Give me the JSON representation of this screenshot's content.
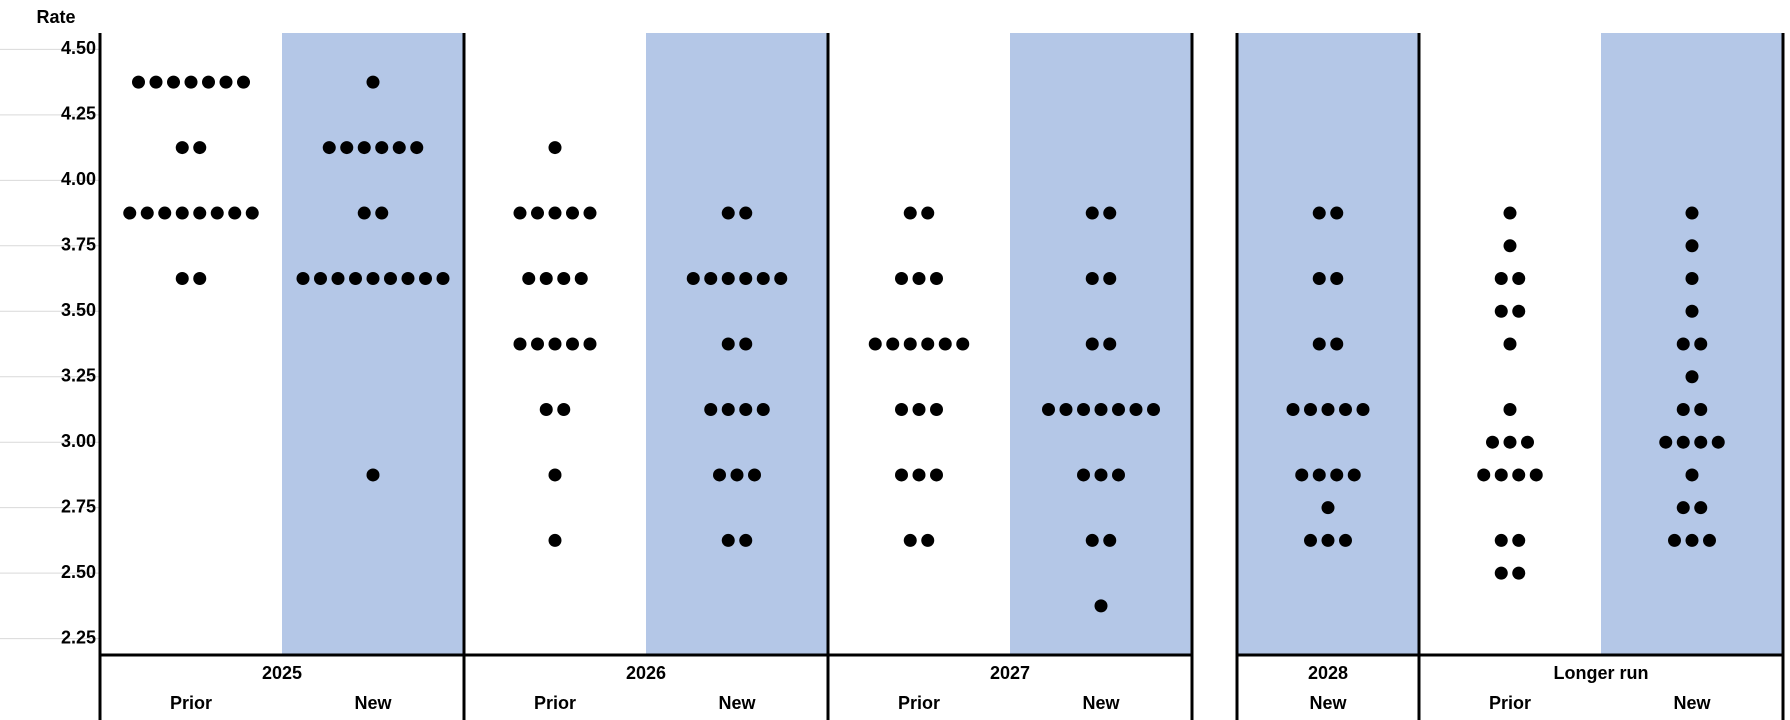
{
  "chart_data": {
    "type": "dot",
    "y_label": "Rate",
    "dot_color": "#000000",
    "ylim": [
      2.1875,
      4.5625
    ],
    "yticks": [
      {
        "value": 2.25,
        "label": "2.25"
      },
      {
        "value": 2.5,
        "label": "2.50"
      },
      {
        "value": 2.75,
        "label": "2.75"
      },
      {
        "value": 3,
        "label": "3.00"
      },
      {
        "value": 3.25,
        "label": "3.25"
      },
      {
        "value": 3.5,
        "label": "3.50"
      },
      {
        "value": 3.75,
        "label": "3.75"
      },
      {
        "value": 4,
        "label": "4.00"
      },
      {
        "value": 4.25,
        "label": "4.25"
      },
      {
        "value": 4.5,
        "label": "4.50"
      }
    ],
    "groups": [
      {
        "name": "2025",
        "columns": [
          {
            "name": "Prior",
            "background": "#ffffff",
            "values": [
              4.375,
              4.375,
              4.375,
              4.375,
              4.375,
              4.375,
              4.375,
              4.125,
              4.125,
              3.875,
              3.875,
              3.875,
              3.875,
              3.875,
              3.875,
              3.875,
              3.875,
              3.625,
              3.625
            ]
          },
          {
            "name": "New",
            "background": "#b4c7e7",
            "values": [
              4.375,
              4.125,
              4.125,
              4.125,
              4.125,
              4.125,
              4.125,
              3.875,
              3.875,
              3.625,
              3.625,
              3.625,
              3.625,
              3.625,
              3.625,
              3.625,
              3.625,
              3.625,
              2.875
            ]
          }
        ]
      },
      {
        "name": "2026",
        "columns": [
          {
            "name": "Prior",
            "background": "#ffffff",
            "values": [
              4.125,
              3.875,
              3.875,
              3.875,
              3.875,
              3.875,
              3.625,
              3.625,
              3.625,
              3.625,
              3.375,
              3.375,
              3.375,
              3.375,
              3.375,
              3.125,
              3.125,
              2.875,
              2.625
            ]
          },
          {
            "name": "New",
            "background": "#b4c7e7",
            "values": [
              3.875,
              3.875,
              3.625,
              3.625,
              3.625,
              3.625,
              3.625,
              3.625,
              3.375,
              3.375,
              3.125,
              3.125,
              3.125,
              3.125,
              2.875,
              2.875,
              2.875,
              2.625,
              2.625
            ]
          }
        ]
      },
      {
        "name": "2027",
        "columns": [
          {
            "name": "Prior",
            "background": "#ffffff",
            "values": [
              3.875,
              3.875,
              3.625,
              3.625,
              3.625,
              3.375,
              3.375,
              3.375,
              3.375,
              3.375,
              3.375,
              3.125,
              3.125,
              3.125,
              2.875,
              2.875,
              2.875,
              2.625,
              2.625
            ]
          },
          {
            "name": "New",
            "background": "#b4c7e7",
            "values": [
              3.875,
              3.875,
              3.625,
              3.625,
              3.375,
              3.375,
              3.125,
              3.125,
              3.125,
              3.125,
              3.125,
              3.125,
              3.125,
              2.875,
              2.875,
              2.875,
              2.625,
              2.625,
              2.375
            ]
          }
        ]
      },
      {
        "name": "2028",
        "columns": [
          {
            "name": "New",
            "background": "#b4c7e7",
            "values": [
              3.875,
              3.875,
              3.625,
              3.625,
              3.375,
              3.375,
              3.125,
              3.125,
              3.125,
              3.125,
              3.125,
              2.875,
              2.875,
              2.875,
              2.875,
              2.75,
              2.625,
              2.625,
              2.625
            ]
          }
        ]
      },
      {
        "name": "Longer run",
        "columns": [
          {
            "name": "Prior",
            "background": "#ffffff",
            "values": [
              3.875,
              3.75,
              3.625,
              3.625,
              3.5,
              3.5,
              3.375,
              3.125,
              3,
              3,
              3,
              2.875,
              2.875,
              2.875,
              2.875,
              2.625,
              2.625,
              2.5,
              2.5
            ]
          },
          {
            "name": "New",
            "background": "#b4c7e7",
            "values": [
              3.875,
              3.75,
              3.625,
              3.5,
              3.375,
              3.375,
              3.25,
              3.125,
              3.125,
              3,
              3,
              3,
              3,
              2.875,
              2.75,
              2.75,
              2.625,
              2.625,
              2.625
            ]
          }
        ]
      }
    ]
  }
}
